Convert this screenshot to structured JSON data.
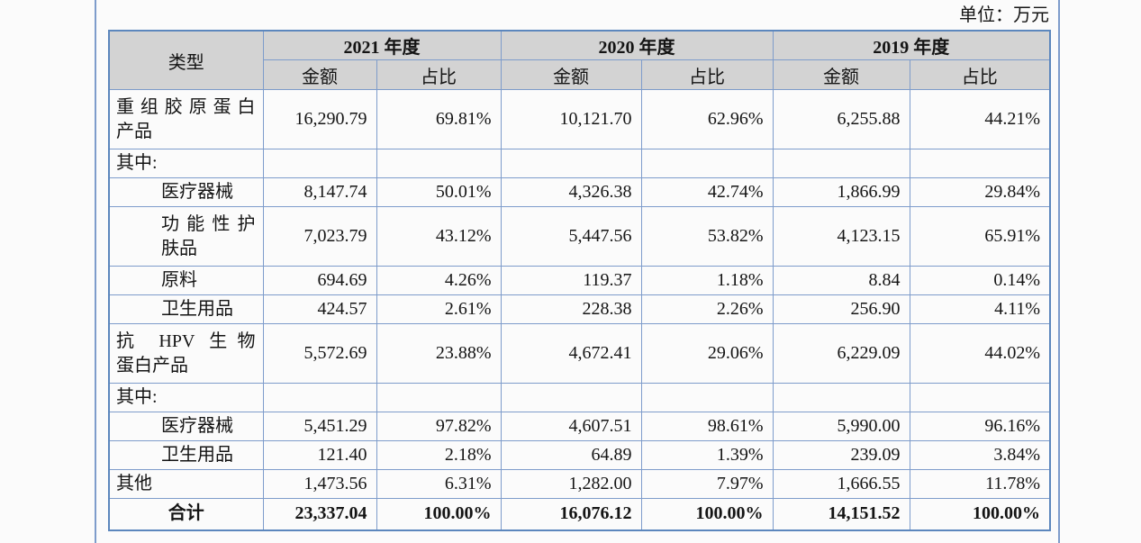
{
  "page": {
    "unit_label": "单位：万元"
  },
  "colors": {
    "background": "#fbfbfb",
    "table_border": "#7e9ccb",
    "table_outer_border": "#5c87bd",
    "header_bg": "#d3d3d3",
    "page_rule": "#7e9ccb",
    "text": "#141414"
  },
  "table": {
    "type_header": "类型",
    "year_groups": [
      {
        "year": "2021 年度",
        "sub_headers": [
          "金额",
          "占比"
        ]
      },
      {
        "year": "2020 年度",
        "sub_headers": [
          "金额",
          "占比"
        ]
      },
      {
        "year": "2019 年度",
        "sub_headers": [
          "金额",
          "占比"
        ]
      }
    ],
    "rows": [
      {
        "label": "重组胶原蛋白产品",
        "lines": [
          "重组胶原蛋白",
          "产品"
        ],
        "indent": false,
        "total": false,
        "values": [
          "16,290.79",
          "69.81%",
          "10,121.70",
          "62.96%",
          "6,255.88",
          "44.21%"
        ]
      },
      {
        "label": "其中:",
        "lines": [
          "其中:"
        ],
        "indent": false,
        "total": false,
        "values": [
          "",
          "",
          "",
          "",
          "",
          ""
        ]
      },
      {
        "label": "医疗器械",
        "lines": [
          "医疗器械"
        ],
        "indent": true,
        "total": false,
        "values": [
          "8,147.74",
          "50.01%",
          "4,326.38",
          "42.74%",
          "1,866.99",
          "29.84%"
        ]
      },
      {
        "label": "功能性护肤品",
        "lines": [
          "功能性护",
          "肤品"
        ],
        "indent": true,
        "total": false,
        "values": [
          "7,023.79",
          "43.12%",
          "5,447.56",
          "53.82%",
          "4,123.15",
          "65.91%"
        ]
      },
      {
        "label": "原料",
        "lines": [
          "原料"
        ],
        "indent": true,
        "total": false,
        "values": [
          "694.69",
          "4.26%",
          "119.37",
          "1.18%",
          "8.84",
          "0.14%"
        ]
      },
      {
        "label": "卫生用品",
        "lines": [
          "卫生用品"
        ],
        "indent": true,
        "total": false,
        "values": [
          "424.57",
          "2.61%",
          "228.38",
          "2.26%",
          "256.90",
          "4.11%"
        ]
      },
      {
        "label": "抗 HPV 生物蛋白产品",
        "lines": [
          "抗 HPV 生物",
          "蛋白产品"
        ],
        "indent": false,
        "total": false,
        "values": [
          "5,572.69",
          "23.88%",
          "4,672.41",
          "29.06%",
          "6,229.09",
          "44.02%"
        ]
      },
      {
        "label": "其中:",
        "lines": [
          "其中:"
        ],
        "indent": false,
        "total": false,
        "values": [
          "",
          "",
          "",
          "",
          "",
          ""
        ]
      },
      {
        "label": "医疗器械",
        "lines": [
          "医疗器械"
        ],
        "indent": true,
        "total": false,
        "values": [
          "5,451.29",
          "97.82%",
          "4,607.51",
          "98.61%",
          "5,990.00",
          "96.16%"
        ]
      },
      {
        "label": "卫生用品",
        "lines": [
          "卫生用品"
        ],
        "indent": true,
        "total": false,
        "values": [
          "121.40",
          "2.18%",
          "64.89",
          "1.39%",
          "239.09",
          "3.84%"
        ]
      },
      {
        "label": "其他",
        "lines": [
          "其他"
        ],
        "indent": false,
        "total": false,
        "values": [
          "1,473.56",
          "6.31%",
          "1,282.00",
          "7.97%",
          "1,666.55",
          "11.78%"
        ]
      },
      {
        "label": "合计",
        "lines": [
          "合计"
        ],
        "indent": false,
        "total": true,
        "values": [
          "23,337.04",
          "100.00%",
          "16,076.12",
          "100.00%",
          "14,151.52",
          "100.00%"
        ]
      }
    ]
  }
}
